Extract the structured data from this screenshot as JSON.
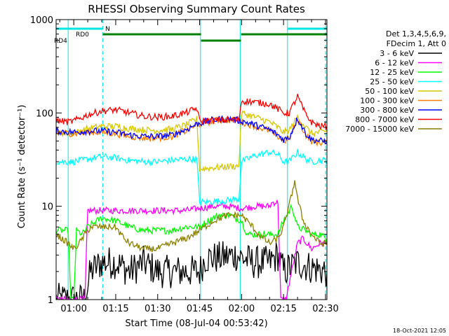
{
  "chart_data": {
    "type": "line",
    "title": "RHESSI Observing Summary Count Rates",
    "xlabel": "Start Time (08-Jul-04 00:53:42)",
    "ylabel": "Count Rate (s⁻¹ detector⁻¹)",
    "yscale": "log",
    "ylim": [
      1,
      1000
    ],
    "xlim_minutes": [
      53.7,
      150.5
    ],
    "x_ticks": [
      {
        "label": "01:00",
        "t": 60
      },
      {
        "label": "01:15",
        "t": 75
      },
      {
        "label": "01:30",
        "t": 90
      },
      {
        "label": "01:45",
        "t": 105
      },
      {
        "label": "02:00",
        "t": 120
      },
      {
        "label": "02:15",
        "t": 135
      },
      {
        "label": "02:30",
        "t": 150
      }
    ],
    "y_ticks": [
      {
        "label": "1",
        "v": 1
      },
      {
        "label": "10",
        "v": 10
      },
      {
        "label": "100",
        "v": 100
      },
      {
        "label": "1000",
        "v": 1000
      }
    ],
    "grid": false,
    "legend": {
      "header": [
        "Det 1,3,4,5,6,9,",
        "FDecim 1, Att 0"
      ],
      "placement": "right"
    },
    "series": [
      {
        "name": "3 - 6 keV",
        "color": "#000000",
        "points": [
          [
            53.7,
            1
          ],
          [
            64,
            1
          ],
          [
            66,
            2
          ],
          [
            70,
            2.5
          ],
          [
            75,
            2.5
          ],
          [
            80,
            2
          ],
          [
            85,
            2.5
          ],
          [
            90,
            2
          ],
          [
            95,
            2
          ],
          [
            100,
            2
          ],
          [
            105,
            2
          ],
          [
            107,
            2.8
          ],
          [
            112,
            2.8
          ],
          [
            118,
            3
          ],
          [
            124,
            2.5
          ],
          [
            130,
            2.5
          ],
          [
            133,
            3
          ],
          [
            135,
            2
          ],
          [
            140,
            2.5
          ],
          [
            145,
            2.2
          ],
          [
            150.5,
            2
          ]
        ]
      },
      {
        "name": "6 - 12 keV",
        "color": "#ff00ff",
        "points": [
          [
            53.7,
            1
          ],
          [
            64,
            1
          ],
          [
            65,
            9
          ],
          [
            70,
            9
          ],
          [
            75,
            9
          ],
          [
            80,
            9
          ],
          [
            85,
            9
          ],
          [
            90,
            9
          ],
          [
            95,
            9
          ],
          [
            100,
            9
          ],
          [
            105,
            9.5
          ],
          [
            110,
            10
          ],
          [
            115,
            10
          ],
          [
            120,
            9.5
          ],
          [
            125,
            10
          ],
          [
            130,
            10
          ],
          [
            131,
            11
          ],
          [
            133,
            11
          ],
          [
            134,
            1
          ],
          [
            136,
            1
          ],
          [
            137,
            1.5
          ],
          [
            140,
            4
          ],
          [
            142,
            4.5
          ],
          [
            145,
            3.5
          ],
          [
            148,
            4
          ],
          [
            150.5,
            4
          ]
        ]
      },
      {
        "name": "12 - 25 keV",
        "color": "#00ff00",
        "points": [
          [
            53.7,
            5.5
          ],
          [
            58,
            5.5
          ],
          [
            59,
            1
          ],
          [
            60,
            1
          ],
          [
            61,
            5.5
          ],
          [
            63,
            5
          ],
          [
            65,
            6
          ],
          [
            70,
            7.5
          ],
          [
            75,
            7
          ],
          [
            80,
            6
          ],
          [
            85,
            5.5
          ],
          [
            90,
            5.5
          ],
          [
            95,
            5.5
          ],
          [
            100,
            6
          ],
          [
            105,
            6
          ],
          [
            108,
            7
          ],
          [
            112,
            8
          ],
          [
            116,
            8
          ],
          [
            120,
            7
          ],
          [
            122,
            5
          ],
          [
            125,
            5
          ],
          [
            130,
            5
          ],
          [
            133,
            5
          ],
          [
            135,
            7
          ],
          [
            138,
            10
          ],
          [
            140,
            6
          ],
          [
            143,
            5.5
          ],
          [
            145,
            5
          ],
          [
            148,
            5
          ],
          [
            150.5,
            4.5
          ]
        ]
      },
      {
        "name": "25 - 50 keV",
        "color": "#00ffff",
        "points": [
          [
            53.7,
            30
          ],
          [
            60,
            30
          ],
          [
            65,
            32
          ],
          [
            70,
            34
          ],
          [
            75,
            33
          ],
          [
            80,
            31
          ],
          [
            85,
            30
          ],
          [
            90,
            30
          ],
          [
            95,
            31
          ],
          [
            100,
            32
          ],
          [
            104,
            32
          ],
          [
            105,
            11
          ],
          [
            115,
            11.5
          ],
          [
            119,
            12
          ],
          [
            120,
            30
          ],
          [
            125,
            35
          ],
          [
            130,
            38
          ],
          [
            133,
            36
          ],
          [
            135,
            30
          ],
          [
            137,
            30
          ],
          [
            140,
            38
          ],
          [
            143,
            32
          ],
          [
            145,
            30
          ],
          [
            148,
            31
          ],
          [
            150.5,
            31
          ]
        ]
      },
      {
        "name": "50 - 100 keV",
        "color": "#d8c800",
        "points": [
          [
            53.7,
            62
          ],
          [
            60,
            60
          ],
          [
            65,
            68
          ],
          [
            70,
            72
          ],
          [
            75,
            72
          ],
          [
            80,
            68
          ],
          [
            85,
            66
          ],
          [
            90,
            65
          ],
          [
            95,
            67
          ],
          [
            100,
            74
          ],
          [
            104,
            86
          ],
          [
            105,
            25
          ],
          [
            110,
            26
          ],
          [
            119,
            27
          ],
          [
            120,
            100
          ],
          [
            125,
            90
          ],
          [
            130,
            80
          ],
          [
            133,
            70
          ],
          [
            135,
            62
          ],
          [
            137,
            65
          ],
          [
            140,
            90
          ],
          [
            143,
            70
          ],
          [
            145,
            60
          ],
          [
            148,
            62
          ],
          [
            150.5,
            64
          ]
        ]
      },
      {
        "name": "100 - 300 keV",
        "color": "#ff7f00",
        "points": [
          [
            53.7,
            62
          ],
          [
            60,
            60
          ],
          [
            65,
            62
          ],
          [
            70,
            62
          ],
          [
            75,
            60
          ],
          [
            80,
            56
          ],
          [
            85,
            54
          ],
          [
            90,
            54
          ],
          [
            95,
            56
          ],
          [
            100,
            64
          ],
          [
            104,
            75
          ],
          [
            108,
            80
          ],
          [
            112,
            84
          ],
          [
            116,
            84
          ],
          [
            120,
            80
          ],
          [
            125,
            72
          ],
          [
            130,
            64
          ],
          [
            133,
            56
          ],
          [
            135,
            50
          ],
          [
            137,
            52
          ],
          [
            140,
            86
          ],
          [
            143,
            58
          ],
          [
            145,
            50
          ],
          [
            148,
            48
          ],
          [
            150.5,
            48
          ]
        ]
      },
      {
        "name": "300 - 800 keV",
        "color": "#0000ff",
        "points": [
          [
            53.7,
            64
          ],
          [
            60,
            62
          ],
          [
            65,
            64
          ],
          [
            70,
            64
          ],
          [
            75,
            62
          ],
          [
            80,
            58
          ],
          [
            85,
            56
          ],
          [
            90,
            56
          ],
          [
            95,
            58
          ],
          [
            100,
            66
          ],
          [
            104,
            76
          ],
          [
            108,
            82
          ],
          [
            112,
            86
          ],
          [
            116,
            86
          ],
          [
            120,
            82
          ],
          [
            125,
            74
          ],
          [
            130,
            66
          ],
          [
            133,
            58
          ],
          [
            135,
            52
          ],
          [
            137,
            54
          ],
          [
            140,
            88
          ],
          [
            143,
            60
          ],
          [
            145,
            52
          ],
          [
            148,
            50
          ],
          [
            150.5,
            50
          ]
        ]
      },
      {
        "name": "800 - 7000 keV",
        "color": "#ff0000",
        "points": [
          [
            53.7,
            83
          ],
          [
            58,
            80
          ],
          [
            60,
            82
          ],
          [
            65,
            95
          ],
          [
            70,
            105
          ],
          [
            75,
            108
          ],
          [
            80,
            100
          ],
          [
            85,
            92
          ],
          [
            90,
            90
          ],
          [
            95,
            92
          ],
          [
            100,
            100
          ],
          [
            104,
            112
          ],
          [
            105,
            82
          ],
          [
            110,
            83
          ],
          [
            115,
            84
          ],
          [
            119,
            84
          ],
          [
            120,
            135
          ],
          [
            125,
            130
          ],
          [
            130,
            125
          ],
          [
            133,
            110
          ],
          [
            135,
            100
          ],
          [
            137,
            100
          ],
          [
            140,
            150
          ],
          [
            143,
            95
          ],
          [
            145,
            80
          ],
          [
            148,
            72
          ],
          [
            150.5,
            72
          ]
        ]
      },
      {
        "name": "7000 - 15000 keV",
        "color": "#8b8000",
        "points": [
          [
            53.7,
            5
          ],
          [
            58,
            4
          ],
          [
            60,
            3.5
          ],
          [
            62,
            4
          ],
          [
            64,
            5
          ],
          [
            66,
            6
          ],
          [
            70,
            6
          ],
          [
            75,
            6
          ],
          [
            78,
            4.5
          ],
          [
            80,
            4
          ],
          [
            85,
            3.5
          ],
          [
            90,
            3.5
          ],
          [
            95,
            4
          ],
          [
            100,
            4.5
          ],
          [
            105,
            5.5
          ],
          [
            110,
            7
          ],
          [
            115,
            8
          ],
          [
            120,
            8
          ],
          [
            124,
            6
          ],
          [
            126,
            5
          ],
          [
            130,
            4
          ],
          [
            133,
            4.5
          ],
          [
            135,
            6
          ],
          [
            137,
            10
          ],
          [
            139,
            19
          ],
          [
            140,
            12
          ],
          [
            142,
            7
          ],
          [
            145,
            5
          ],
          [
            148,
            4
          ],
          [
            150.5,
            4
          ]
        ]
      }
    ],
    "status_bars": [
      {
        "label": "N",
        "color": "#00e6e6",
        "segments": [
          [
            53.7,
            70.4
          ],
          [
            136.5,
            150.5
          ]
        ]
      },
      {
        "label": "RD0",
        "color": "#008000",
        "segments": [
          [
            70.4,
            105.5
          ],
          [
            119.8,
            150.5
          ]
        ]
      },
      {
        "label": "RD4",
        "color": "#008000",
        "segments": [
          [
            105.5,
            119.8
          ]
        ]
      }
    ],
    "markers": {
      "solid": [
        {
          "t": 58,
          "color": "#00e6e6"
        },
        {
          "t": 105.3,
          "color": "#00e6e6"
        },
        {
          "t": 119.5,
          "color": "#00e6e6"
        },
        {
          "t": 136.4,
          "color": "#00e6e6"
        }
      ],
      "dashed": [
        {
          "t": 70.4,
          "color": "#00e6e6"
        },
        {
          "t": 150.0,
          "color": "#00e6e6"
        }
      ]
    },
    "footer_date": "18-Oct-2021 12:05"
  }
}
